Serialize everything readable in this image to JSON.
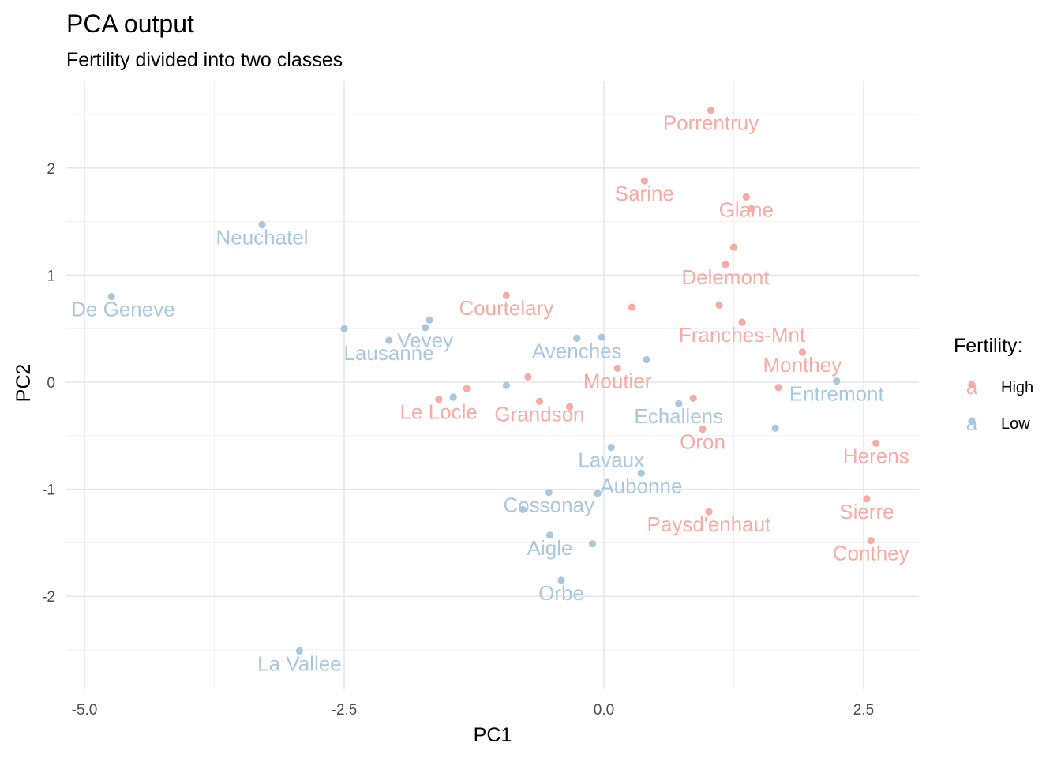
{
  "chart_data": {
    "type": "scatter",
    "title": "PCA output",
    "subtitle": "Fertility divided into two classes",
    "xlabel": "PC1",
    "ylabel": "PC2",
    "xlim": [
      -5.2,
      3.0
    ],
    "ylim": [
      -2.85,
      2.6
    ],
    "xticks": [
      -5.0,
      -2.5,
      0.0,
      2.5
    ],
    "xtick_labels": [
      "-5.0",
      "-2.5",
      "0.0",
      "2.5"
    ],
    "yticks": [
      -2,
      -1,
      0,
      1,
      2
    ],
    "ytick_labels": [
      "-2",
      "-1",
      "0",
      "1",
      "2"
    ],
    "grid": true,
    "legend": {
      "title": "Fertility:",
      "position": "right",
      "glyph": "a",
      "entries": [
        "High",
        "Low"
      ]
    },
    "colors": {
      "High": "#f8aaa4",
      "Low": "#a9c8de"
    },
    "points": [
      {
        "x": 1.03,
        "y": 2.54,
        "group": "High",
        "label": "Porrentruy"
      },
      {
        "x": 0.39,
        "y": 1.88,
        "group": "High",
        "label": "Sarine"
      },
      {
        "x": 1.37,
        "y": 1.73,
        "group": "High",
        "label": "Glane"
      },
      {
        "x": 1.42,
        "y": 1.62,
        "group": "High",
        "label": ""
      },
      {
        "x": 1.25,
        "y": 1.26,
        "group": "High",
        "label": ""
      },
      {
        "x": 1.17,
        "y": 1.1,
        "group": "High",
        "label": "Delemont"
      },
      {
        "x": -0.94,
        "y": 0.81,
        "group": "High",
        "label": "Courtelary"
      },
      {
        "x": 0.27,
        "y": 0.7,
        "group": "High",
        "label": ""
      },
      {
        "x": 1.11,
        "y": 0.72,
        "group": "High",
        "label": ""
      },
      {
        "x": 1.33,
        "y": 0.56,
        "group": "High",
        "label": "Franches-Mnt"
      },
      {
        "x": 1.91,
        "y": 0.28,
        "group": "High",
        "label": "Monthey"
      },
      {
        "x": 0.13,
        "y": 0.13,
        "group": "High",
        "label": "Moutier"
      },
      {
        "x": -0.73,
        "y": 0.05,
        "group": "High",
        "label": ""
      },
      {
        "x": -1.32,
        "y": -0.06,
        "group": "High",
        "label": ""
      },
      {
        "x": -1.59,
        "y": -0.16,
        "group": "High",
        "label": "Le Locle"
      },
      {
        "x": -0.62,
        "y": -0.18,
        "group": "High",
        "label": "Grandson"
      },
      {
        "x": -0.33,
        "y": -0.23,
        "group": "High",
        "label": ""
      },
      {
        "x": 0.86,
        "y": -0.15,
        "group": "High",
        "label": ""
      },
      {
        "x": 1.68,
        "y": -0.05,
        "group": "High",
        "label": ""
      },
      {
        "x": 0.95,
        "y": -0.44,
        "group": "High",
        "label": "Oron"
      },
      {
        "x": 2.62,
        "y": -0.57,
        "group": "High",
        "label": "Herens"
      },
      {
        "x": 2.53,
        "y": -1.09,
        "group": "High",
        "label": "Sierre"
      },
      {
        "x": 1.01,
        "y": -1.21,
        "group": "High",
        "label": "Paysd'enhaut"
      },
      {
        "x": 2.57,
        "y": -1.48,
        "group": "High",
        "label": "Conthey"
      },
      {
        "x": -3.29,
        "y": 1.47,
        "group": "Low",
        "label": "Neuchatel"
      },
      {
        "x": -4.74,
        "y": 0.8,
        "group": "Low",
        "label": "V. De Geneve"
      },
      {
        "x": -2.5,
        "y": 0.5,
        "group": "Low",
        "label": ""
      },
      {
        "x": -2.07,
        "y": 0.39,
        "group": "Low",
        "label": "Lausanne"
      },
      {
        "x": -1.68,
        "y": 0.58,
        "group": "Low",
        "label": ""
      },
      {
        "x": -1.72,
        "y": 0.51,
        "group": "Low",
        "label": "Vevey"
      },
      {
        "x": -0.26,
        "y": 0.41,
        "group": "Low",
        "label": "Avenches"
      },
      {
        "x": -0.02,
        "y": 0.42,
        "group": "Low",
        "label": ""
      },
      {
        "x": 0.41,
        "y": 0.21,
        "group": "Low",
        "label": ""
      },
      {
        "x": -1.45,
        "y": -0.14,
        "group": "Low",
        "label": ""
      },
      {
        "x": -0.94,
        "y": -0.03,
        "group": "Low",
        "label": ""
      },
      {
        "x": 2.24,
        "y": 0.01,
        "group": "Low",
        "label": "Entremont"
      },
      {
        "x": 0.72,
        "y": -0.2,
        "group": "Low",
        "label": "Echallens"
      },
      {
        "x": 1.65,
        "y": -0.43,
        "group": "Low",
        "label": ""
      },
      {
        "x": 0.07,
        "y": -0.61,
        "group": "Low",
        "label": "Lavaux"
      },
      {
        "x": 0.36,
        "y": -0.85,
        "group": "Low",
        "label": "Aubonne"
      },
      {
        "x": -0.06,
        "y": -1.04,
        "group": "Low",
        "label": ""
      },
      {
        "x": -0.53,
        "y": -1.03,
        "group": "Low",
        "label": "Cossonay"
      },
      {
        "x": -0.78,
        "y": -1.19,
        "group": "Low",
        "label": ""
      },
      {
        "x": -0.52,
        "y": -1.43,
        "group": "Low",
        "label": "Aigle"
      },
      {
        "x": -0.11,
        "y": -1.51,
        "group": "Low",
        "label": ""
      },
      {
        "x": -0.41,
        "y": -1.85,
        "group": "Low",
        "label": "Orbe"
      },
      {
        "x": -2.93,
        "y": -2.51,
        "group": "Low",
        "label": "La Vallee"
      }
    ]
  }
}
